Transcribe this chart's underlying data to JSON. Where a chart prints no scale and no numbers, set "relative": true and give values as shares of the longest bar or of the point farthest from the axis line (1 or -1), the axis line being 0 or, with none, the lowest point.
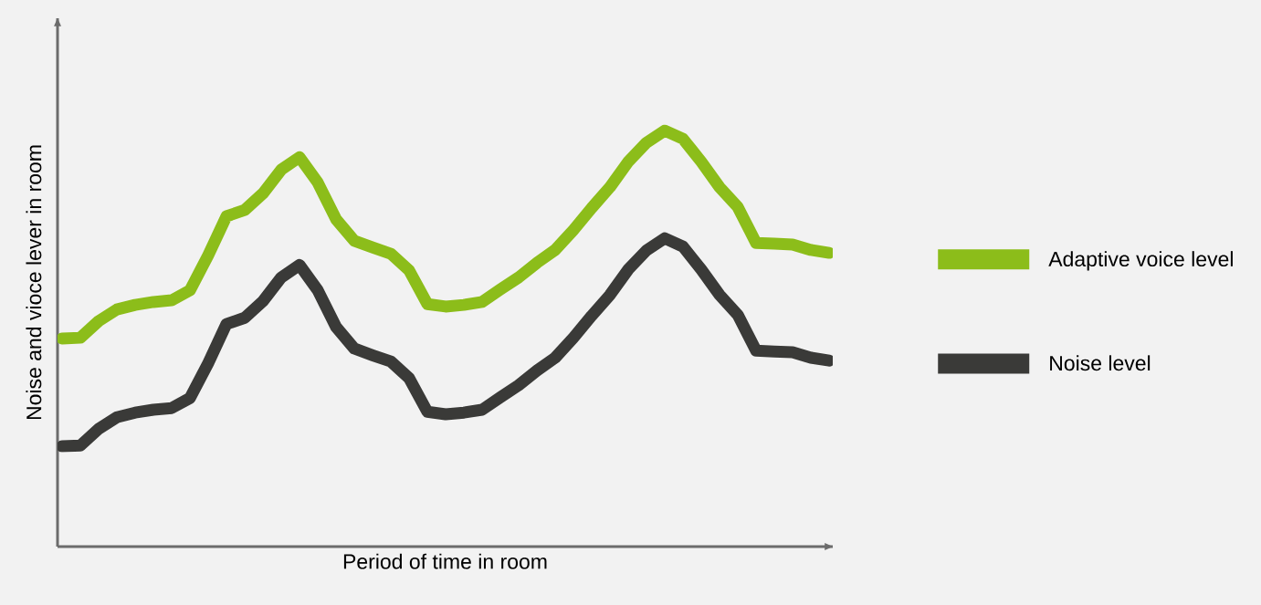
{
  "chart_data": {
    "type": "line",
    "relative": true,
    "xlabel": "Period of time in room",
    "ylabel": "Noise and vioce lever in room",
    "legend": "right",
    "categories": [
      null,
      null,
      null,
      null,
      null,
      null,
      null,
      null,
      null,
      null,
      null,
      null,
      null,
      null,
      null,
      null,
      null,
      null,
      null,
      null,
      null,
      null,
      null,
      null,
      null,
      null,
      null,
      null,
      null,
      null,
      null,
      null,
      null,
      null,
      null,
      null,
      null,
      null,
      null,
      null,
      null,
      null,
      null
    ],
    "series": [
      {
        "name": "Adaptive voice level",
        "color": "#8cbd1a",
        "values": [
          0.5,
          0.502,
          0.542,
          0.57,
          0.581,
          0.588,
          0.592,
          0.616,
          0.7,
          0.794,
          0.809,
          0.849,
          0.906,
          0.936,
          0.875,
          0.787,
          0.735,
          0.719,
          0.704,
          0.664,
          0.583,
          0.577,
          0.581,
          0.588,
          0.618,
          0.647,
          0.682,
          0.713,
          0.761,
          0.814,
          0.864,
          0.925,
          0.971,
          1.0,
          0.98,
          0.925,
          0.864,
          0.816,
          0.73,
          0.728,
          0.726,
          0.713,
          0.706
        ]
      },
      {
        "name": "Noise level",
        "color": "#3a3a38",
        "values": [
          0.241,
          0.243,
          0.283,
          0.311,
          0.322,
          0.329,
          0.333,
          0.357,
          0.441,
          0.535,
          0.55,
          0.59,
          0.647,
          0.677,
          0.616,
          0.528,
          0.476,
          0.46,
          0.445,
          0.405,
          0.324,
          0.318,
          0.322,
          0.329,
          0.359,
          0.388,
          0.423,
          0.454,
          0.502,
          0.555,
          0.605,
          0.666,
          0.712,
          0.741,
          0.721,
          0.666,
          0.605,
          0.557,
          0.471,
          0.469,
          0.467,
          0.454,
          0.447
        ]
      }
    ]
  }
}
